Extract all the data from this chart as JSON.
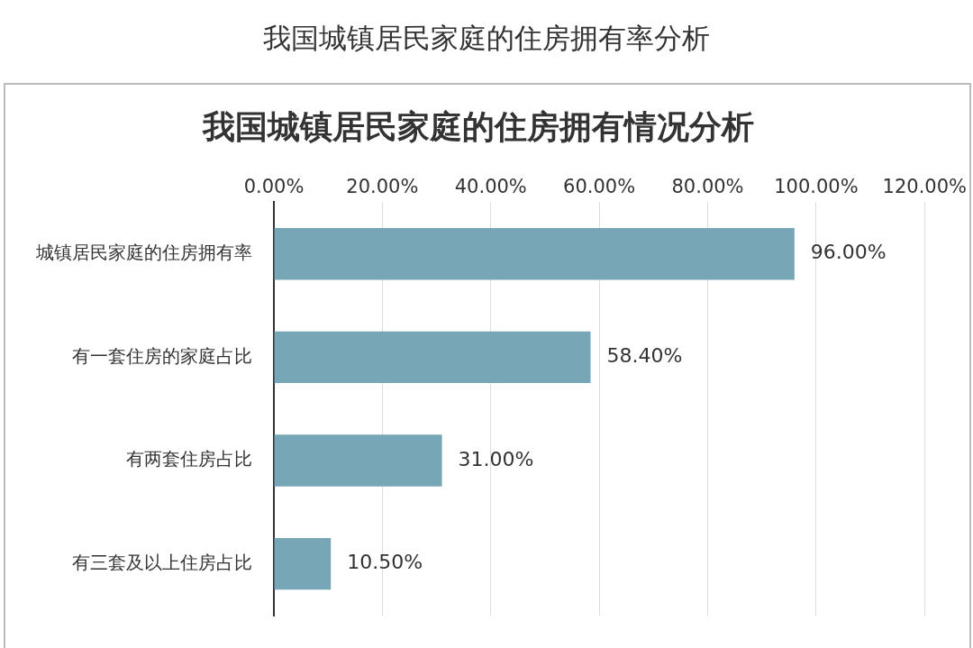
{
  "chart_data": {
    "type": "bar",
    "orientation": "horizontal",
    "title": "我国城镇居民家庭的住房拥有率分析",
    "subtitle": "我国城镇居民家庭的住房拥有情况分析",
    "categories": [
      "城镇居民家庭的住房拥有率",
      "有一套住房的家庭占比",
      "有两套住房占比",
      "有三套及以上住房占比"
    ],
    "values": [
      96,
      58.4,
      31,
      10.5
    ],
    "color": "#77a6b6",
    "value_labels": [
      "96.00%",
      "58.40%",
      "31.00%",
      "10.50%"
    ],
    "xlim": [
      0,
      120
    ],
    "xticks": [
      {
        "value": 0,
        "label": "0.00%"
      },
      {
        "value": 20,
        "label": "20.00%"
      },
      {
        "value": 40,
        "label": "40.00%"
      },
      {
        "value": 60,
        "label": "60.00%"
      },
      {
        "value": 80,
        "label": "80.00%"
      },
      {
        "value": 100,
        "label": "100.00%"
      },
      {
        "value": 120,
        "label": "120.00%"
      }
    ],
    "grid": "x",
    "legend": false
  }
}
